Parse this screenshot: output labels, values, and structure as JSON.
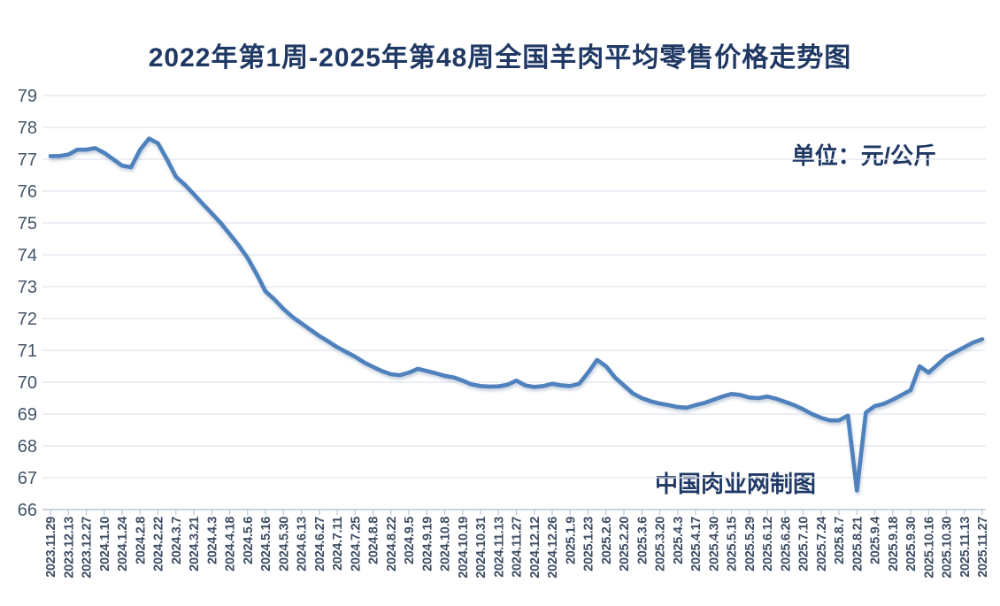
{
  "chart_data": {
    "type": "line",
    "title": "2022年第1周-2025年第48周全国羊肉平均零售价格走势图",
    "unit_label": "单位：元/公斤",
    "watermark": "中国肉业网制图",
    "ylabel": "",
    "xlabel": "",
    "ylim": [
      66,
      79
    ],
    "y_ticks": [
      66,
      67,
      68,
      69,
      70,
      71,
      72,
      73,
      74,
      75,
      76,
      77,
      78,
      79
    ],
    "grid": true,
    "legend_position": "none",
    "line_color": "#4f81bd",
    "gridline_color": "#dfe5ef",
    "axis_color": "#b9c5d6",
    "tick_label_color": "#3d4d63",
    "title_color": "#1f3864",
    "x_label_every": 2,
    "x_labels": [
      "2023.11.29",
      "2023.12.13",
      "2023.12.27",
      "2024.1.10",
      "2024.1.24",
      "2024.2.8",
      "2024.2.22",
      "2024.3.7",
      "2024.3.21",
      "2024.4.3",
      "2024.4.18",
      "2024.5.6",
      "2024.5.16",
      "2024.5.30",
      "2024.6.13",
      "2024.6.27",
      "2024.7.11",
      "2024.7.25",
      "2024.8.8",
      "2024.8.22",
      "2024.9.5",
      "2024.9.19",
      "2024.10.8",
      "2024.10.19",
      "2024.10.31",
      "2024.11.13",
      "2024.11.27",
      "2024.12.12",
      "2024.12.26",
      "2025.1.9",
      "2025.1.23",
      "2025.2.6",
      "2025.2.20",
      "2025.3.6",
      "2025.3.20",
      "2025.4.3",
      "2025.4.17",
      "2025.4.30",
      "2025.5.15",
      "2025.5.29",
      "2025.6.12",
      "2025.6.26",
      "2025.7.10",
      "2025.7.24",
      "2025.8.7",
      "2025.8.21",
      "2025.9.4",
      "2025.9.18",
      "2025.9.30",
      "2025.10.16",
      "2025.10.30",
      "2025.11.13",
      "2025.11.27"
    ],
    "values_note": "weekly average retail price of mutton, yuan per kg; x labels mark every 2nd weekly point",
    "values": [
      77.1,
      77.1,
      77.15,
      77.3,
      77.3,
      77.35,
      77.2,
      77.0,
      76.8,
      76.75,
      77.3,
      77.65,
      77.5,
      77.0,
      76.45,
      76.2,
      75.9,
      75.6,
      75.3,
      75.0,
      74.65,
      74.3,
      73.9,
      73.4,
      72.85,
      72.6,
      72.3,
      72.05,
      71.85,
      71.65,
      71.45,
      71.28,
      71.1,
      70.95,
      70.8,
      70.62,
      70.48,
      70.35,
      70.25,
      70.22,
      70.3,
      70.42,
      70.35,
      70.28,
      70.2,
      70.15,
      70.05,
      69.93,
      69.88,
      69.86,
      69.87,
      69.92,
      70.05,
      69.9,
      69.85,
      69.88,
      69.95,
      69.9,
      69.88,
      69.95,
      70.3,
      70.7,
      70.5,
      70.15,
      69.9,
      69.65,
      69.5,
      69.4,
      69.33,
      69.28,
      69.22,
      69.2,
      69.28,
      69.35,
      69.45,
      69.55,
      69.63,
      69.6,
      69.52,
      69.5,
      69.55,
      69.48,
      69.38,
      69.28,
      69.15,
      69.0,
      68.88,
      68.8,
      68.8,
      68.95,
      66.6,
      69.05,
      69.25,
      69.32,
      69.45,
      69.6,
      69.75,
      70.5,
      70.3,
      70.55,
      70.8,
      70.95,
      71.1,
      71.25,
      71.35
    ]
  }
}
